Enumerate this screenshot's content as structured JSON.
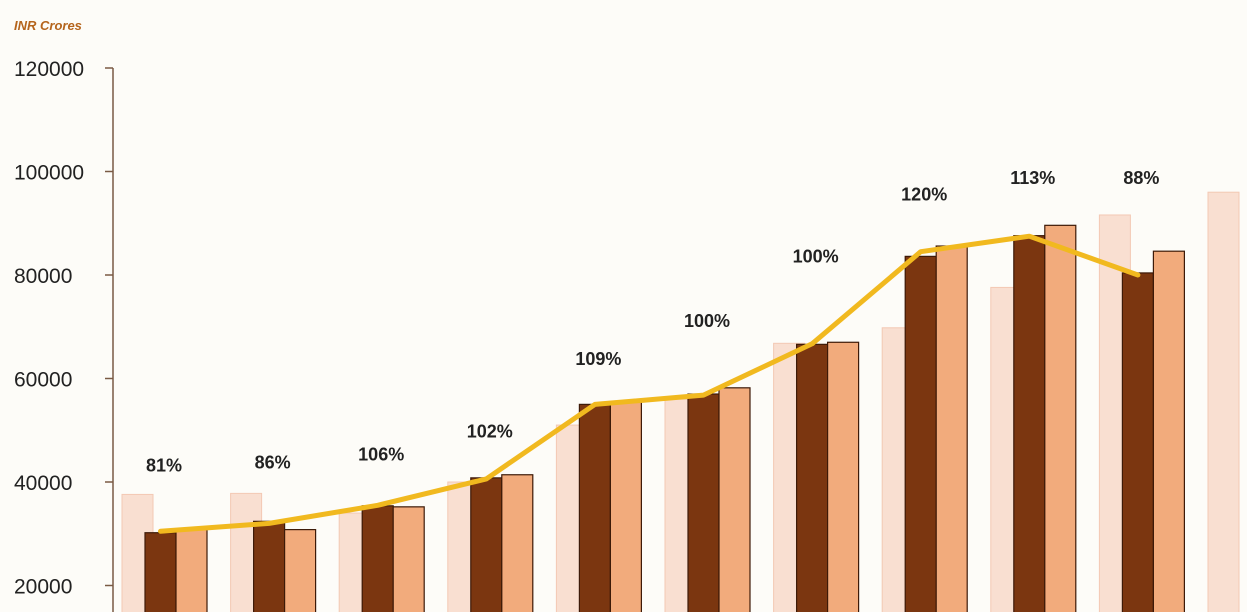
{
  "chart_data": {
    "type": "bar",
    "unit_label": "INR Crores",
    "y_ticks": [
      "120000",
      "100000",
      "80000",
      "60000",
      "40000",
      "20000"
    ],
    "ylim": [
      15000,
      120000
    ],
    "series": [
      {
        "values": [
          37600,
          37800,
          34000,
          40000,
          51000,
          56000,
          66800,
          69800,
          77600,
          91600,
          96000
        ],
        "color": "#f9dfd1"
      },
      {
        "values": [
          30200,
          32400,
          35400,
          40800,
          55000,
          57000,
          66600,
          83600,
          87600,
          80400,
          null
        ],
        "color": "#7b3610"
      },
      {
        "values": [
          30800,
          30800,
          35200,
          41400,
          55400,
          58200,
          67000,
          85600,
          89600,
          84600,
          null
        ],
        "color": "#f2ab7c"
      }
    ],
    "line": {
      "color": "#f1b91f",
      "values": [
        30500,
        32000,
        35500,
        40600,
        55000,
        56800,
        66700,
        84500,
        87500,
        80000
      ]
    },
    "percent_labels": [
      "81%",
      "86%",
      "106%",
      "102%",
      "109%",
      "100%",
      "100%",
      "120%",
      "113%",
      "88%"
    ],
    "percent_label_values": [
      42000,
      42600,
      44200,
      48600,
      62600,
      70000,
      82400,
      94400,
      97600,
      97600
    ]
  }
}
